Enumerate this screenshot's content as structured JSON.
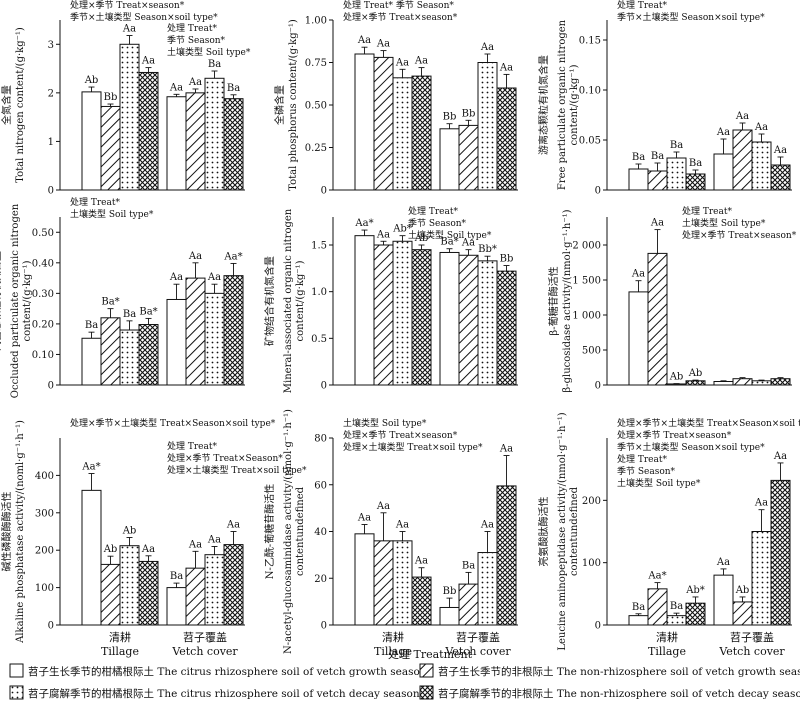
{
  "chart_data": [
    {
      "type": "bar",
      "ylabel_cn": "全氮含量",
      "ylabel": "Total nitrogen content/(g·kg⁻¹)",
      "ylim": [
        0,
        3.5
      ],
      "yticks": [
        0,
        1,
        2,
        3
      ],
      "categories": [
        "清耕 Tillage",
        "苕子覆盖 Vetch cover"
      ],
      "values": [
        [
          2.02,
          1.72,
          3.0,
          2.42
        ],
        [
          1.92,
          2.0,
          2.3,
          1.88
        ]
      ],
      "errors": [
        [
          0.1,
          0.05,
          0.18,
          0.1
        ],
        [
          0.05,
          0.08,
          0.15,
          0.08
        ]
      ],
      "labels": [
        [
          "Ab",
          "Bb",
          "Aa",
          "Aa"
        ],
        [
          "Aa",
          "Aa",
          "Ba",
          "Ba"
        ]
      ],
      "annotations": [
        {
          "lines": [
            "处理×季节 Treat×season*",
            "季节×土壤类型 Season×soil type*"
          ],
          "anchor": "top-left"
        },
        {
          "lines": [
            "处理 Treat*",
            "季节 Season*",
            "土壤类型 Soil type*"
          ],
          "anchor": "mid"
        }
      ]
    },
    {
      "type": "bar",
      "ylabel_cn": "全磷含量",
      "ylabel": "Total phosphorus content/(g·kg⁻¹)",
      "ylim": [
        0,
        1.0
      ],
      "yticks": [
        0,
        0.25,
        0.5,
        0.75,
        1.0
      ],
      "yticklabels": [
        "0",
        "0.25",
        "0.50",
        "0.75",
        "1.00"
      ],
      "categories": [
        "清耕 Tillage",
        "苕子覆盖 Vetch cover"
      ],
      "values": [
        [
          0.8,
          0.78,
          0.66,
          0.67
        ],
        [
          0.36,
          0.38,
          0.75,
          0.6
        ]
      ],
      "errors": [
        [
          0.04,
          0.04,
          0.05,
          0.05
        ],
        [
          0.03,
          0.03,
          0.05,
          0.08
        ]
      ],
      "labels": [
        [
          "Aa",
          "Aa",
          "Aa",
          "Aa"
        ],
        [
          "Bb",
          "Bb",
          "Aa",
          "Aa"
        ]
      ],
      "annotations": [
        {
          "lines": [
            "处理 Treat* 季节 Season*",
            "处理×季节 Treat×season*"
          ],
          "anchor": "top-left"
        }
      ]
    },
    {
      "type": "bar",
      "ylabel_cn": "游离态颗粒有机氮含量",
      "ylabel": "Free particulate organic nitrogen content/(g·kg⁻¹)",
      "ylim": [
        0,
        0.17
      ],
      "yticks": [
        0,
        0.05,
        0.1,
        0.15
      ],
      "yticklabels": [
        "0",
        "0.05",
        "0.10",
        "0.15"
      ],
      "categories": [
        "清耕 Tillage",
        "苕子覆盖 Vetch cover"
      ],
      "values": [
        [
          0.021,
          0.019,
          0.032,
          0.016
        ],
        [
          0.036,
          0.06,
          0.048,
          0.025
        ]
      ],
      "errors": [
        [
          0.005,
          0.008,
          0.006,
          0.004
        ],
        [
          0.015,
          0.007,
          0.008,
          0.008
        ]
      ],
      "labels": [
        [
          "Ba",
          "Ba",
          "Ba",
          "Ba"
        ],
        [
          "Aa",
          "Aa",
          "Aa",
          "Aa"
        ]
      ],
      "annotations": [
        {
          "lines": [
            "处理 Treat*",
            "季节×土壤类型 Season×soil type*"
          ],
          "anchor": "top-left"
        }
      ]
    },
    {
      "type": "bar",
      "ylabel_cn": "闭蓄态颗粒有机氮含量",
      "ylabel": "Occluded particulate organic nitrogen content/(g·kg⁻¹)",
      "ylim": [
        0,
        0.55
      ],
      "yticks": [
        0,
        0.1,
        0.2,
        0.3,
        0.4,
        0.5
      ],
      "yticklabels": [
        "0",
        "0.10",
        "0.20",
        "0.30",
        "0.40",
        "0.50"
      ],
      "categories": [
        "清耕 Tillage",
        "苕子覆盖 Vetch cover"
      ],
      "values": [
        [
          0.153,
          0.22,
          0.18,
          0.198
        ],
        [
          0.28,
          0.35,
          0.3,
          0.358
        ]
      ],
      "errors": [
        [
          0.02,
          0.03,
          0.03,
          0.02
        ],
        [
          0.05,
          0.05,
          0.03,
          0.04
        ]
      ],
      "labels": [
        [
          "Ba",
          "Ba*",
          "Ba",
          "Ba*"
        ],
        [
          "Aa",
          "Aa",
          "Aa",
          "Aa*"
        ]
      ],
      "annotations": [
        {
          "lines": [
            "处理 Treat*",
            "土壤类型 Soil type*"
          ],
          "anchor": "top-left"
        }
      ]
    },
    {
      "type": "bar",
      "ylabel_cn": "矿物结合有机氮含量",
      "ylabel": "Mineral-associated organic nitrogen content/(g·kg⁻¹)",
      "ylim": [
        0,
        1.8
      ],
      "yticks": [
        0,
        0.5,
        1.0,
        1.5
      ],
      "yticklabels": [
        "0",
        "0.5",
        "1.0",
        "1.5"
      ],
      "categories": [
        "清耕 Tillage",
        "苕子覆盖 Vetch cover"
      ],
      "values": [
        [
          1.6,
          1.5,
          1.54,
          1.45
        ],
        [
          1.42,
          1.39,
          1.33,
          1.22
        ]
      ],
      "errors": [
        [
          0.06,
          0.04,
          0.06,
          0.05
        ],
        [
          0.04,
          0.06,
          0.05,
          0.06
        ]
      ],
      "labels": [
        [
          "Aa*",
          "Aa",
          "Ab*",
          "Ab"
        ],
        [
          "Ba*",
          "Aa",
          "Bb*",
          "Bb"
        ]
      ],
      "annotations": [
        {
          "lines": [
            "处理 Treat*",
            "季节 Season*",
            "土壤类型 Soil type*"
          ],
          "anchor": "top-right"
        }
      ]
    },
    {
      "type": "bar",
      "ylabel_cn": "β-葡糖苷酶活性",
      "ylabel": "β-glucosidase activity/(nmol·g⁻¹·h⁻¹)",
      "ylim": [
        0,
        2400
      ],
      "yticks": [
        0,
        500,
        1000,
        1500,
        2000
      ],
      "yticklabels": [
        "0",
        "500",
        "1 000",
        "1 500",
        "2 000"
      ],
      "categories": [
        "",
        ""
      ],
      "values": [
        [
          1330,
          1880,
          15,
          60
        ],
        [
          50,
          90,
          60,
          90
        ]
      ],
      "errors": [
        [
          160,
          340,
          5,
          10
        ],
        [
          10,
          15,
          10,
          15
        ]
      ],
      "labels": [
        [
          "Aa",
          "Aa",
          "Ab",
          "Ab"
        ],
        [
          "",
          "",
          "",
          ""
        ]
      ],
      "annotations": [
        {
          "lines": [
            "处理 Treat*",
            "土壤类型 Soil type*",
            "处理×季节 Treat×season*"
          ],
          "anchor": "top-right"
        }
      ]
    },
    {
      "type": "bar",
      "ylabel_cn": "碱性磷酸酶酶活性",
      "ylabel": "Alkaline phosphatase activity/(noml·g⁻¹·h⁻¹)",
      "ylim": [
        0,
        500
      ],
      "yticks": [
        0,
        100,
        200,
        300,
        400
      ],
      "categories": [
        "清耕 Tillage",
        "苕子覆盖 Vetch cover"
      ],
      "values": [
        [
          360,
          162,
          212,
          170
        ],
        [
          100,
          152,
          188,
          215
        ]
      ],
      "errors": [
        [
          45,
          22,
          22,
          15
        ],
        [
          12,
          45,
          22,
          35
        ]
      ],
      "labels": [
        [
          "Aa*",
          "Ab",
          "Ab",
          "Aa"
        ],
        [
          "Ba",
          "Aa",
          "Aa",
          "Aa"
        ]
      ],
      "annotations": [
        {
          "lines": [
            "处理×季节×土壤类型 Treat×Season×soil type*"
          ],
          "anchor": "top-left"
        },
        {
          "lines": [
            "处理 Treat*",
            "处理×季节 Treat×Season*",
            "处理×土壤类型 Treat×soil type*"
          ],
          "anchor": "mid"
        }
      ]
    },
    {
      "type": "bar",
      "ylabel_cn": "N-乙酰-葡糖苷酶活性",
      "ylabel": "N-acetyl-glucosaminidase activity/(nmol·g⁻¹·h⁻¹)",
      "ylim": [
        0,
        80
      ],
      "yticks": [
        0,
        20,
        40,
        60,
        80
      ],
      "categories": [
        "清耕 Tillage",
        "苕子覆盖 Vetch cover"
      ],
      "values": [
        [
          39,
          36,
          36,
          20.5
        ],
        [
          7.5,
          17.5,
          31,
          59.5
        ]
      ],
      "errors": [
        [
          4,
          12,
          4,
          4
        ],
        [
          4,
          5,
          9,
          13
        ]
      ],
      "labels": [
        [
          "Aa",
          "Aa",
          "Aa",
          "Aa"
        ],
        [
          "Bb",
          "Ba",
          "Aa",
          "Aa"
        ]
      ],
      "annotations": [
        {
          "lines": [
            "土壤类型 Soil type*",
            "处理×季节 Treat×season*",
            "处理×土壤类型 Treat×soil type*"
          ],
          "anchor": "top-left"
        }
      ]
    },
    {
      "type": "bar",
      "ylabel_cn": "亮氨酸肽酶活性",
      "ylabel": "Leucine aminopeptidase activity/(nmol·g⁻¹·h⁻¹)",
      "ylim": [
        0,
        300
      ],
      "yticks": [
        0,
        100,
        200
      ],
      "categories": [
        "清耕 Tillage",
        "苕子覆盖 Vetch cover"
      ],
      "values": [
        [
          15,
          58,
          15,
          35
        ],
        [
          80,
          37,
          150,
          232
        ]
      ],
      "errors": [
        [
          3,
          10,
          4,
          10
        ],
        [
          10,
          8,
          35,
          28
        ]
      ],
      "labels": [
        [
          "Ba",
          "Aa*",
          "Ba",
          "Ab*"
        ],
        [
          "Aa",
          "Ab",
          "Aa",
          "Aa"
        ]
      ],
      "annotations": [
        {
          "lines": [
            "处理×季节×土壤类型 Treat×Season×soil type*",
            "处理×季节 Treat×season*",
            "季节×土壤类型 Season×soil type*",
            "处理 Treat*",
            "季节 Season*",
            "土壤类型 Soil type*"
          ],
          "anchor": "top-left"
        }
      ]
    }
  ],
  "x_axis_title": "处理 Treatment",
  "x_category_labels": [
    [
      "清耕",
      "Tillage"
    ],
    [
      "苕子覆盖",
      "Vetch cover"
    ]
  ],
  "legend": [
    {
      "label": "苕子生长季节的柑橘根际土 The citrus rhizosphere soil of vetch growth season",
      "pattern": "blank"
    },
    {
      "label": "苕子生长季节的非根际土 The non-rhizosphere soil of vetch growth season",
      "pattern": "diagonal"
    },
    {
      "label": "苕子腐解季节的柑橘根际土 The citrus rhizosphere soil of vetch decay season",
      "pattern": "dots"
    },
    {
      "label": "苕子腐解季节的非根际土 The non-rhizosphere soil of vetch decay season",
      "pattern": "crosshatch"
    }
  ]
}
